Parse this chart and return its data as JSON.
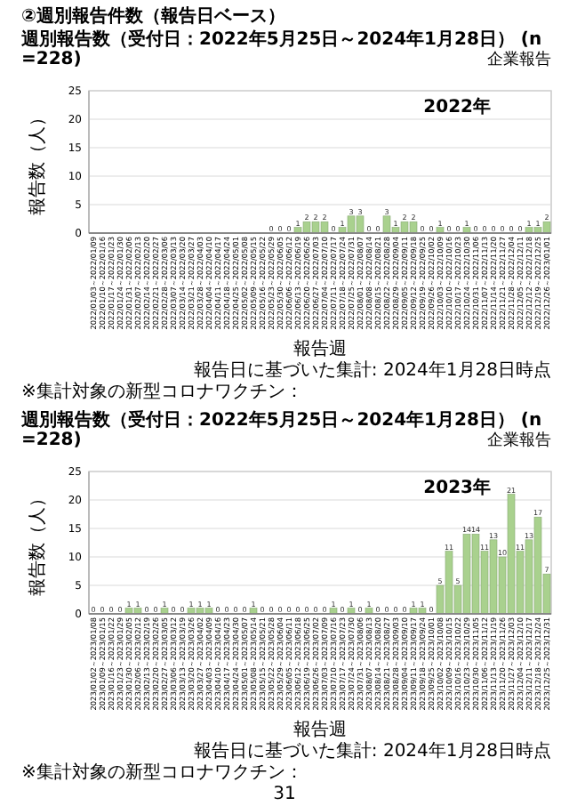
{
  "chart_data": [
    {
      "type": "bar",
      "title": "②週別報告件数（報告日ベース）",
      "subtitle": "週別報告数（受付日：2022年5月25日～2024年1月28日） (n=228)",
      "xlabel": "報告週",
      "ylabel": "報告数（人）",
      "annotations": [
        "企業報告",
        "2022年",
        "報告日に基づいた集計: 2024年1月28日時点",
        "※集計対象の新型コロナワクチン："
      ],
      "categories": [
        "2022/01/03～2022/01/09",
        "2022/01/10～2022/01/16",
        "2022/01/17～2022/01/23",
        "2022/01/24～2022/01/30",
        "2022/01/31～2022/02/06",
        "2022/02/07～2022/02/13",
        "2022/02/14～2022/02/20",
        "2022/02/21～2022/02/27",
        "2022/02/28～2022/03/06",
        "2022/03/07～2022/03/13",
        "2022/03/14～2022/03/20",
        "2022/03/21～2022/03/27",
        "2022/03/28～2022/04/03",
        "2022/04/04～2022/04/10",
        "2022/04/11～2022/04/17",
        "2022/04/18～2022/04/24",
        "2022/04/25～2022/05/01",
        "2022/05/02～2022/05/08",
        "2022/05/09～2022/05/15",
        "2022/05/16～2022/05/22",
        "2022/05/23～2022/05/29",
        "2022/05/30～2022/06/05",
        "2022/06/06～2022/06/12",
        "2022/06/13～2022/06/19",
        "2022/06/20～2022/06/26",
        "2022/06/27～2022/07/03",
        "2022/07/04～2022/07/10",
        "2022/07/11～2022/07/17",
        "2022/07/18～2022/07/24",
        "2022/07/25～2022/07/31",
        "2022/08/01～2022/08/07",
        "2022/08/08～2022/08/14",
        "2022/08/15～2022/08/21",
        "2022/08/22～2022/08/28",
        "2022/08/29～2022/09/04",
        "2022/09/05～2022/09/11",
        "2022/09/12～2022/09/18",
        "2022/09/19～2022/09/25",
        "2022/09/26～2022/10/02",
        "2022/10/03～2022/10/09",
        "2022/10/10～2022/10/16",
        "2022/10/17～2022/10/23",
        "2022/10/24～2022/10/30",
        "2022/10/31～2022/11/06",
        "2022/11/07～2022/11/13",
        "2022/11/14～2022/11/20",
        "2022/11/21～2022/11/27",
        "2022/11/28～2022/12/04",
        "2022/12/05～2022/12/11",
        "2022/12/12～2022/12/18",
        "2022/12/19～2022/12/25",
        "2022/12/26～2023/01/01"
      ],
      "values": [
        null,
        null,
        null,
        null,
        null,
        null,
        null,
        null,
        null,
        null,
        null,
        null,
        null,
        null,
        null,
        null,
        null,
        null,
        null,
        null,
        0,
        0,
        0,
        1,
        2,
        2,
        2,
        0,
        1,
        3,
        3,
        0,
        0,
        3,
        1,
        2,
        2,
        0,
        0,
        1,
        0,
        0,
        1,
        0,
        0,
        0,
        0,
        0,
        0,
        1,
        1,
        2
      ],
      "color": "#a9d18e",
      "data_labels": true,
      "ylim": [
        0,
        25
      ],
      "yticks": [
        0,
        5,
        10,
        15,
        20,
        25
      ],
      "grid": "y"
    },
    {
      "type": "bar",
      "title": "週別報告数（受付日：2022年5月25日～2024年1月28日） (n=228)",
      "xlabel": "報告週",
      "ylabel": "報告数（人）",
      "annotations": [
        "企業報告",
        "2023年",
        "報告日に基づいた集計: 2024年1月28日時点",
        "※集計対象の新型コロナワクチン：",
        "31"
      ],
      "categories": [
        "2023/01/02～2023/01/08",
        "2023/01/09～2023/01/15",
        "2023/01/16～2023/01/22",
        "2023/01/23～2023/01/29",
        "2023/01/30～2023/02/05",
        "2023/02/06～2023/02/12",
        "2023/02/13～2023/02/19",
        "2023/02/20～2023/02/26",
        "2023/02/27～2023/03/05",
        "2023/03/06～2023/03/12",
        "2023/03/13～2023/03/19",
        "2023/03/20～2023/03/26",
        "2023/03/27～2023/04/02",
        "2023/04/03～2023/04/09",
        "2023/04/10～2023/04/16",
        "2023/04/17～2023/04/23",
        "2023/04/24～2023/04/30",
        "2023/05/01～2023/05/07",
        "2023/05/08～2023/05/14",
        "2023/05/15～2023/05/21",
        "2023/05/22～2023/05/28",
        "2023/05/29～2023/06/04",
        "2023/06/05～2023/06/11",
        "2023/06/12～2023/06/18",
        "2023/06/19～2023/06/25",
        "2023/06/26～2023/07/02",
        "2023/07/03～2023/07/09",
        "2023/07/10～2023/07/16",
        "2023/07/17～2023/07/23",
        "2023/07/24～2023/07/30",
        "2023/07/31～2023/08/06",
        "2023/08/07～2023/08/13",
        "2023/08/14～2023/08/20",
        "2023/08/21～2023/08/27",
        "2023/08/28～2023/09/03",
        "2023/09/04～2023/09/10",
        "2023/09/11～2023/09/17",
        "2023/09/18～2023/09/24",
        "2023/09/25～2023/10/01",
        "2023/10/02～2023/10/08",
        "2023/10/09～2023/10/15",
        "2023/10/16～2023/10/22",
        "2023/10/23～2023/10/29",
        "2023/10/30～2023/11/05",
        "2023/11/06～2023/11/12",
        "2023/11/13～2023/11/19",
        "2023/11/20～2023/11/26",
        "2023/11/27～2023/12/03",
        "2023/12/04～2023/12/10",
        "2023/12/11～2023/12/17",
        "2023/12/18～2023/12/24",
        "2023/12/25～2023/12/31"
      ],
      "values": [
        0,
        0,
        0,
        0,
        1,
        1,
        0,
        0,
        1,
        0,
        0,
        1,
        1,
        1,
        0,
        0,
        0,
        0,
        1,
        0,
        0,
        0,
        0,
        0,
        0,
        0,
        0,
        1,
        0,
        1,
        0,
        1,
        0,
        0,
        0,
        0,
        1,
        1,
        0,
        5,
        11,
        5,
        14,
        14,
        11,
        13,
        10,
        21,
        11,
        13,
        17,
        7
      ],
      "color": "#a9d18e",
      "data_labels": true,
      "ylim": [
        0,
        25
      ],
      "yticks": [
        0,
        5,
        10,
        15,
        20,
        25
      ],
      "grid": "y"
    }
  ]
}
